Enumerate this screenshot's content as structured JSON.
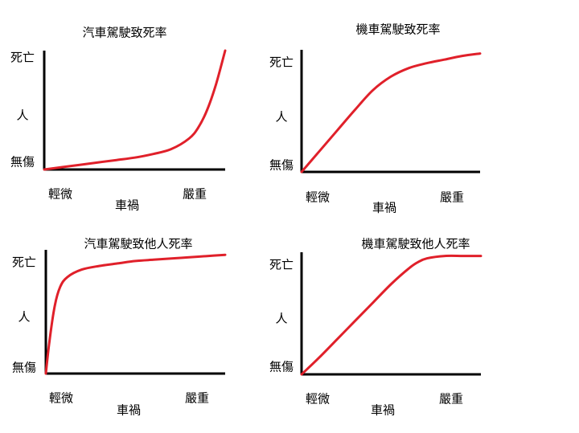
{
  "chart_data": [
    {
      "type": "line",
      "title": "汽車駕駛致死率",
      "y_ticks": [
        "死亡",
        "人",
        "無傷"
      ],
      "x_ticks": [
        "輕微",
        "嚴重"
      ],
      "xlabel": "車禍",
      "xlim": [
        0,
        1
      ],
      "ylim": [
        0,
        1
      ],
      "series": [
        {
          "color": "#e0202a",
          "x": [
            0,
            0.1,
            0.2,
            0.3,
            0.4,
            0.5,
            0.6,
            0.7,
            0.8,
            0.85,
            0.9,
            0.95,
            1.0
          ],
          "y": [
            0,
            0.02,
            0.04,
            0.06,
            0.08,
            0.1,
            0.13,
            0.17,
            0.26,
            0.35,
            0.5,
            0.72,
            1.0
          ]
        }
      ]
    },
    {
      "type": "line",
      "title": "機車駕駛致死率",
      "y_ticks": [
        "死亡",
        "人",
        "無傷"
      ],
      "x_ticks": [
        "輕微",
        "嚴重"
      ],
      "xlabel": "車禍",
      "xlim": [
        0,
        1
      ],
      "ylim": [
        0,
        1
      ],
      "series": [
        {
          "color": "#e0202a",
          "x": [
            0,
            0.1,
            0.2,
            0.3,
            0.4,
            0.5,
            0.6,
            0.7,
            0.8,
            0.9,
            1.0
          ],
          "y": [
            0,
            0.17,
            0.34,
            0.51,
            0.67,
            0.78,
            0.85,
            0.89,
            0.92,
            0.95,
            0.97
          ]
        }
      ]
    },
    {
      "type": "line",
      "title": "汽車駕駛致他人死率",
      "y_ticks": [
        "死亡",
        "人",
        "無傷"
      ],
      "x_ticks": [
        "輕微",
        "嚴重"
      ],
      "xlabel": "車禍",
      "xlim": [
        0,
        1
      ],
      "ylim": [
        0,
        1
      ],
      "series": [
        {
          "color": "#e0202a",
          "x": [
            0,
            0.02,
            0.05,
            0.08,
            0.12,
            0.2,
            0.3,
            0.4,
            0.5,
            0.6,
            0.7,
            0.8,
            0.9,
            1.0
          ],
          "y": [
            0,
            0.26,
            0.55,
            0.7,
            0.78,
            0.84,
            0.87,
            0.89,
            0.91,
            0.92,
            0.93,
            0.94,
            0.95,
            0.96
          ]
        }
      ]
    },
    {
      "type": "line",
      "title": "機車駕駛致他人死率",
      "y_ticks": [
        "死亡",
        "人",
        "無傷"
      ],
      "x_ticks": [
        "輕微",
        "嚴重"
      ],
      "xlabel": "車禍",
      "xlim": [
        0,
        1
      ],
      "ylim": [
        0,
        1
      ],
      "series": [
        {
          "color": "#e0202a",
          "x": [
            0,
            0.1,
            0.2,
            0.3,
            0.4,
            0.5,
            0.6,
            0.65,
            0.7,
            0.8,
            0.9,
            1.0
          ],
          "y": [
            0,
            0.14,
            0.29,
            0.44,
            0.59,
            0.74,
            0.87,
            0.92,
            0.95,
            0.97,
            0.97,
            0.97
          ]
        }
      ]
    }
  ]
}
